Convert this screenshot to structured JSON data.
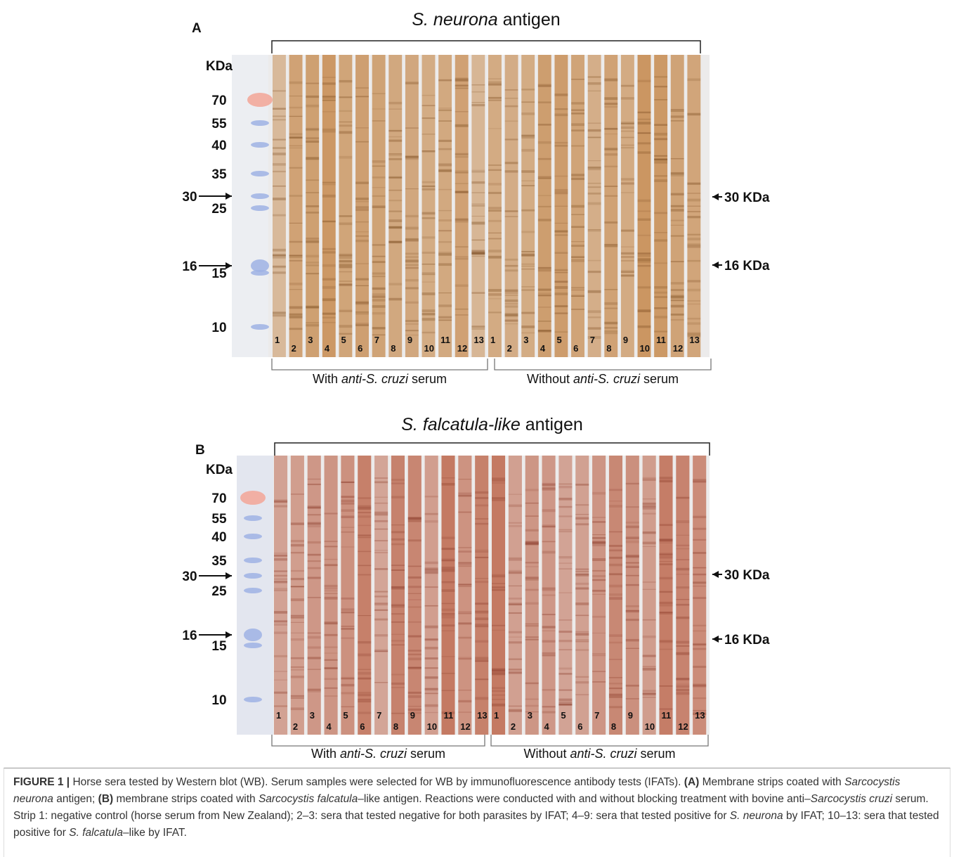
{
  "panels": [
    {
      "letter": "A",
      "title": [
        {
          "text": "S. neurona",
          "style": "italic"
        },
        {
          "text": " antigen",
          "style": "normal"
        }
      ],
      "unit": "KDa",
      "ladder_labels": [
        "70",
        "55",
        "40",
        "35",
        "30",
        "25",
        "16",
        "15",
        "10"
      ],
      "markers": [
        "30 KDa",
        "16 KDa"
      ],
      "color": "#c89058",
      "groups": [
        {
          "label": [
            {
              "text": "With ",
              "style": "normal"
            },
            {
              "text": "anti-S. cruzi",
              "style": "italic"
            },
            {
              "text": " serum",
              "style": "normal"
            }
          ],
          "lanes": [
            1,
            2,
            3,
            4,
            5,
            6,
            7,
            8,
            9,
            10,
            11,
            12,
            13
          ]
        },
        {
          "label": [
            {
              "text": "Without ",
              "style": "normal"
            },
            {
              "text": "anti-S. cruzi",
              "style": "italic"
            },
            {
              "text": " serum",
              "style": "normal"
            }
          ],
          "lanes": [
            1,
            2,
            3,
            4,
            5,
            6,
            7,
            8,
            9,
            10,
            11,
            12,
            13
          ]
        }
      ]
    },
    {
      "letter": "B",
      "title": [
        {
          "text": "S. falcatula-like",
          "style": "italic"
        },
        {
          "text": " antigen",
          "style": "normal"
        }
      ],
      "unit": "KDa",
      "ladder_labels": [
        "70",
        "55",
        "40",
        "35",
        "30",
        "25",
        "16",
        "15",
        "10"
      ],
      "markers": [
        "30 KDa",
        "16 KDa"
      ],
      "color": "#bf6e55",
      "groups": [
        {
          "label": [
            {
              "text": "With ",
              "style": "normal"
            },
            {
              "text": "anti-S. cruzi",
              "style": "italic"
            },
            {
              "text": " serum",
              "style": "normal"
            }
          ],
          "lanes": [
            1,
            2,
            3,
            4,
            5,
            6,
            7,
            8,
            9,
            10,
            11,
            12,
            13
          ]
        },
        {
          "label": [
            {
              "text": "Without ",
              "style": "normal"
            },
            {
              "text": "anti-S. cruzi",
              "style": "italic"
            },
            {
              "text": " serum",
              "style": "normal"
            }
          ],
          "lanes": [
            1,
            2,
            3,
            4,
            5,
            6,
            7,
            8,
            9,
            10,
            11,
            12,
            13
          ]
        }
      ]
    }
  ],
  "caption": [
    {
      "text": "FIGURE 1 |",
      "style": "bold"
    },
    {
      "text": " Horse sera tested by Western blot (WB). Serum samples were selected for WB by immunofluorescence antibody tests (IFATs). ",
      "style": "normal"
    },
    {
      "text": "(A)",
      "style": "bold"
    },
    {
      "text": " Membrane strips coated with ",
      "style": "normal"
    },
    {
      "text": "Sarcocystis neurona",
      "style": "italic"
    },
    {
      "text": " antigen; ",
      "style": "normal"
    },
    {
      "text": "(B)",
      "style": "bold"
    },
    {
      "text": " membrane strips coated with ",
      "style": "normal"
    },
    {
      "text": "Sarcocystis falcatula",
      "style": "italic"
    },
    {
      "text": "–like antigen. Reactions were conducted with and without blocking treatment with bovine anti–",
      "style": "normal"
    },
    {
      "text": "Sarcocystis cruzi",
      "style": "italic"
    },
    {
      "text": " serum. Strip 1: negative control (horse serum from New Zealand); 2–3: sera that tested negative for both parasites by IFAT; 4–9: sera that tested positive for ",
      "style": "normal"
    },
    {
      "text": "S. neurona",
      "style": "italic"
    },
    {
      "text": " by IFAT; 10–13: sera that tested positive for ",
      "style": "normal"
    },
    {
      "text": "S. falcatula",
      "style": "italic"
    },
    {
      "text": "–like by IFAT.",
      "style": "normal"
    }
  ]
}
